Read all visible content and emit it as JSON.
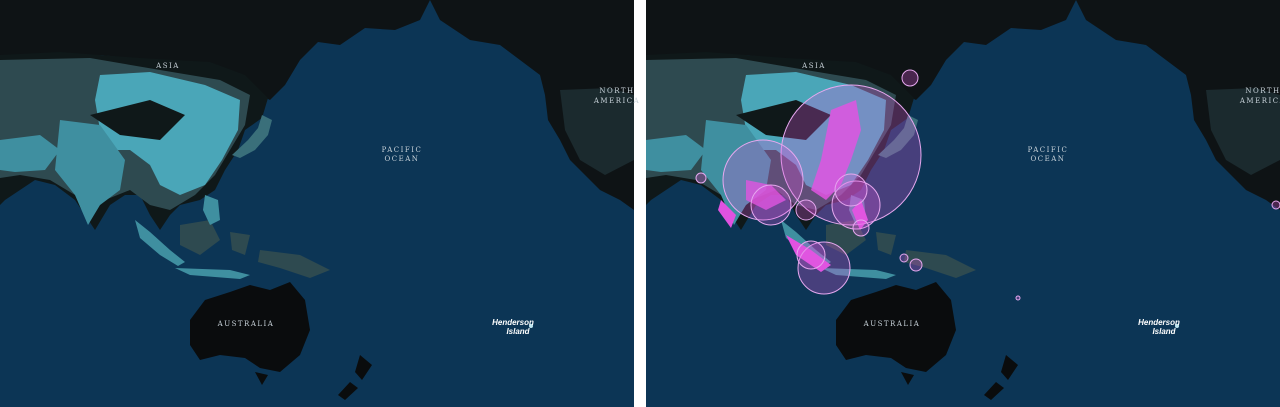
{
  "panels": [
    {
      "labels": {
        "asia": "ASIA",
        "north_america": [
          "NORTH",
          "AMERICA"
        ],
        "pacific_ocean": [
          "PACIFIC",
          "OCEAN"
        ],
        "australia": "AUSTRALIA",
        "henderson_island": [
          "Henderson",
          "Island"
        ]
      }
    },
    {
      "labels": {
        "asia": "ASIA",
        "north_america": [
          "NORTH",
          "AMERICA"
        ],
        "pacific_ocean": [
          "PACIFIC",
          "OCEAN"
        ],
        "australia": "AUSTRALIA",
        "henderson_island": [
          "Henderson",
          "Island"
        ]
      }
    }
  ]
}
